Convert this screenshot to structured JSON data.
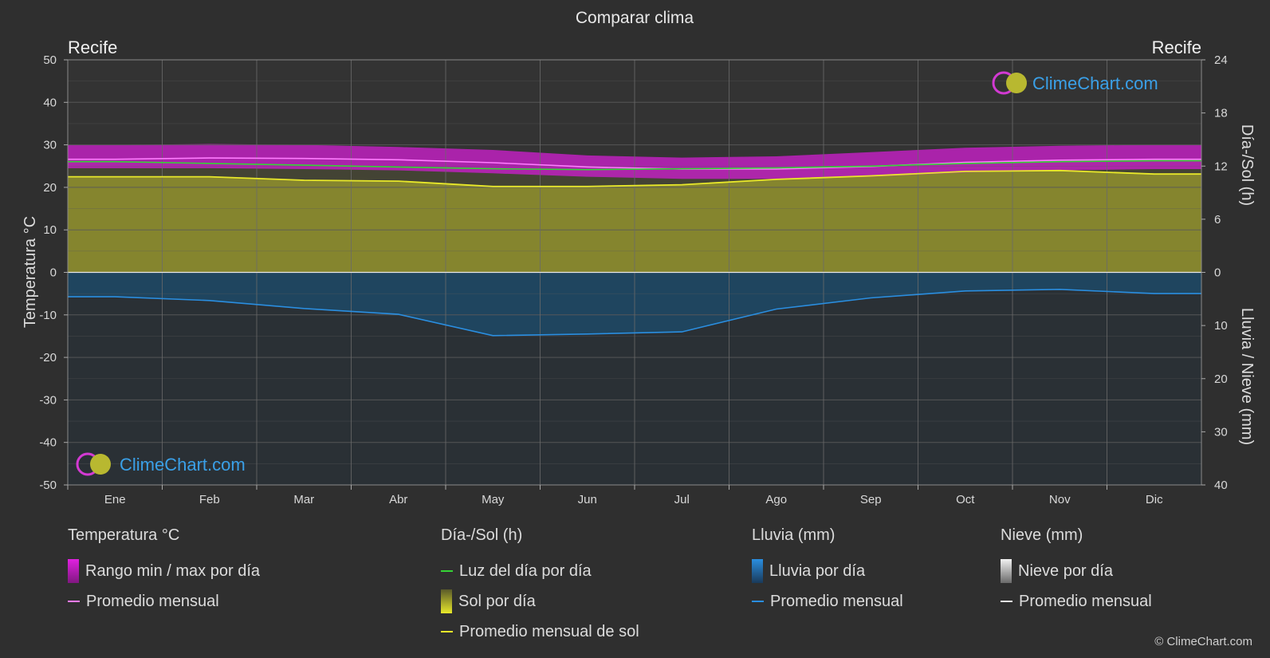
{
  "chart_data": {
    "type": "area",
    "title": "Comparar clima",
    "location_left": "Recife",
    "location_right": "Recife",
    "categories": [
      "Ene",
      "Feb",
      "Mar",
      "Abr",
      "May",
      "Jun",
      "Jul",
      "Ago",
      "Sep",
      "Oct",
      "Nov",
      "Dic"
    ],
    "y_left": {
      "label": "Temperatura °C",
      "range": [
        -50,
        50
      ],
      "ticks": [
        50,
        40,
        30,
        20,
        10,
        0,
        -10,
        -20,
        -30,
        -40,
        -50
      ]
    },
    "y_right_top": {
      "label": "Día-/Sol (h)",
      "range": [
        0,
        24
      ],
      "ticks": [
        24,
        18,
        12,
        6,
        0
      ]
    },
    "y_right_bottom": {
      "label": "Lluvia / Nieve (mm)",
      "range": [
        0,
        40
      ],
      "ticks": [
        0,
        10,
        20,
        30,
        40
      ]
    },
    "series": [
      {
        "name": "Rango min / max por día",
        "unit": "°C",
        "min": [
          24.5,
          24.5,
          24.3,
          24.0,
          23.3,
          22.5,
          22.0,
          22.0,
          22.5,
          23.5,
          24.0,
          24.3
        ],
        "max": [
          30.0,
          30.2,
          30.0,
          29.5,
          28.8,
          27.5,
          27.0,
          27.3,
          28.3,
          29.3,
          29.8,
          30.0
        ]
      },
      {
        "name": "Promedio mensual",
        "unit": "°C",
        "values": [
          26.6,
          26.9,
          26.8,
          26.5,
          25.8,
          24.8,
          24.3,
          24.3,
          24.9,
          25.9,
          26.4,
          26.6
        ]
      },
      {
        "name": "Luz del día por día",
        "unit": "h",
        "values": [
          12.5,
          12.3,
          12.1,
          11.9,
          11.7,
          11.6,
          11.7,
          11.8,
          12.0,
          12.3,
          12.5,
          12.6
        ]
      },
      {
        "name": "Promedio mensual de sol",
        "unit": "h",
        "values": [
          10.8,
          10.8,
          10.4,
          10.3,
          9.7,
          9.7,
          9.9,
          10.5,
          10.9,
          11.4,
          11.5,
          11.1
        ]
      },
      {
        "name": "Promedio mensual",
        "kind": "rain",
        "unit": "mm",
        "values": [
          4.6,
          5.3,
          6.8,
          7.9,
          11.9,
          11.6,
          11.2,
          6.9,
          4.8,
          3.5,
          3.2,
          4.0
        ]
      }
    ]
  },
  "legend": {
    "temp": {
      "title": "Temperatura °C",
      "range": "Rango min / max por día",
      "avg": "Promedio mensual"
    },
    "sun": {
      "title": "Día-/Sol (h)",
      "daylight": "Luz del día por día",
      "sun": "Sol por día",
      "sun_avg": "Promedio mensual de sol"
    },
    "rain": {
      "title": "Lluvia (mm)",
      "rain": "Lluvia por día",
      "avg": "Promedio mensual"
    },
    "snow": {
      "title": "Nieve (mm)",
      "snow": "Nieve por día",
      "avg": "Promedio mensual"
    }
  },
  "brand": {
    "logo_text": "ClimeChart.com",
    "copyright": "© ClimeChart.com"
  },
  "colors": {
    "temp_range": "#c81fc8",
    "temp_avg": "#ff7cff",
    "daylight": "#35d435",
    "sun_fill": "#8a8a2e",
    "sun_avg": "#e8e82a",
    "rain_fill": "#1d5f8a",
    "rain_avg": "#2a8ee0",
    "snow": "#e6e6e6"
  }
}
